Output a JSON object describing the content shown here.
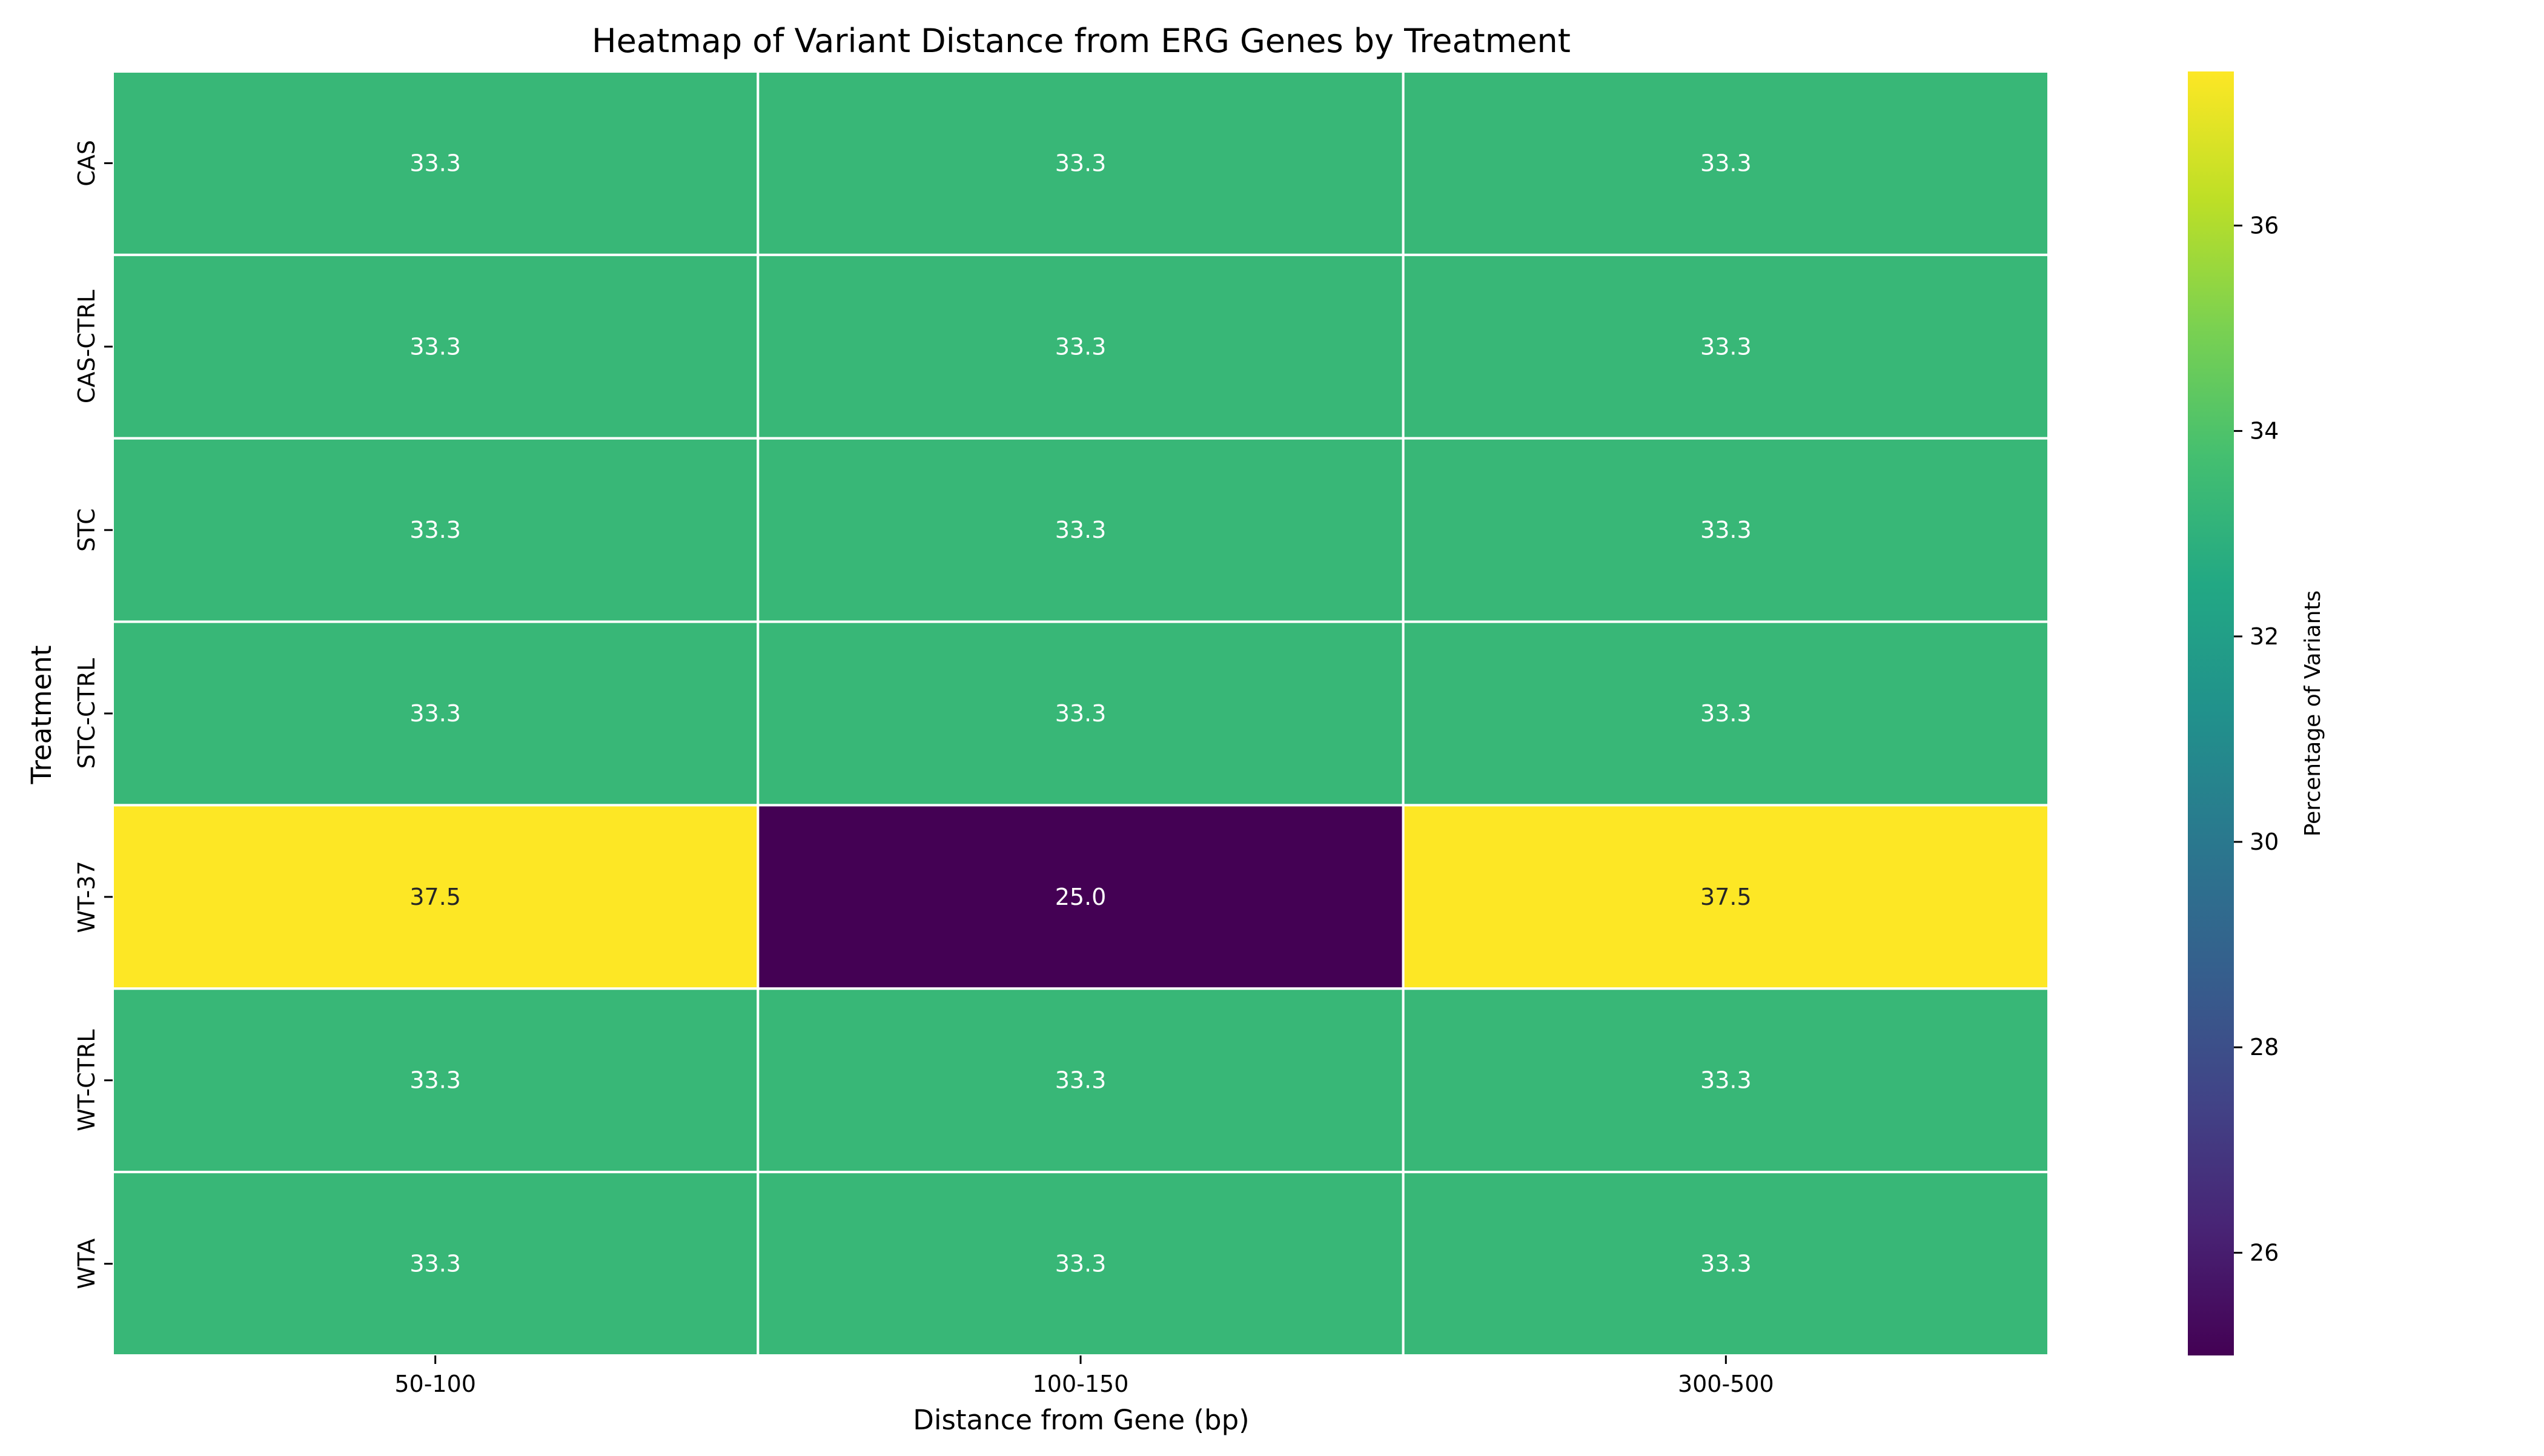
{
  "chart_data": {
    "type": "heatmap",
    "title": "Heatmap of Variant Distance from ERG Genes by Treatment",
    "xlabel": "Distance from Gene (bp)",
    "ylabel": "Treatment",
    "x_categories": [
      "50-100",
      "100-150",
      "300-500"
    ],
    "y_categories": [
      "CAS",
      "CAS-CTRL",
      "STC",
      "STC-CTRL",
      "WT-37",
      "WT-CTRL",
      "WTA"
    ],
    "values": [
      [
        33.3,
        33.3,
        33.3
      ],
      [
        33.3,
        33.3,
        33.3
      ],
      [
        33.3,
        33.3,
        33.3
      ],
      [
        33.3,
        33.3,
        33.3
      ],
      [
        37.5,
        25.0,
        37.5
      ],
      [
        33.3,
        33.3,
        33.3
      ],
      [
        33.3,
        33.3,
        33.3
      ]
    ],
    "colormap": "viridis",
    "vmin": 25.0,
    "vmax": 37.5,
    "colorbar": {
      "label": "Percentage of Variants",
      "ticks": [
        26,
        28,
        30,
        32,
        34,
        36
      ]
    },
    "annotate_cells": true,
    "cell_border_color": "#ffffff",
    "colors": {
      "low": "#440154",
      "mid_33": "#37b878",
      "high": "#fde725"
    }
  }
}
